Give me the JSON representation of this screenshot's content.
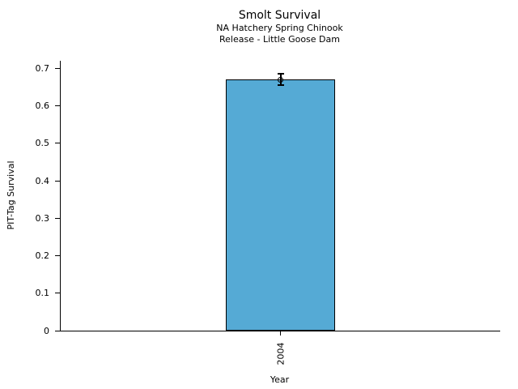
{
  "chart_data": {
    "type": "bar",
    "title": "Smolt Survival",
    "subtitle_lines": [
      "NA Hatchery Spring Chinook",
      "Release - Little Goose Dam"
    ],
    "categories": [
      "2004"
    ],
    "values": [
      0.67
    ],
    "errors": [
      0.015
    ],
    "xlabel": "Year",
    "ylabel": "PIT-Tag Survival",
    "ylim": [
      0,
      0.72
    ],
    "yticks": [
      0,
      0.1,
      0.2,
      0.3,
      0.4,
      0.5,
      0.6,
      0.7
    ],
    "ytick_labels": [
      "0",
      "0.1",
      "0.2",
      "0.3",
      "0.4",
      "0.5",
      "0.6",
      "0.7"
    ],
    "grid": false,
    "legend": false,
    "bar_color": "#55AAD5",
    "bar_edge_color": "#000000",
    "error_color": "#000000",
    "background_color": "#ffffff"
  }
}
